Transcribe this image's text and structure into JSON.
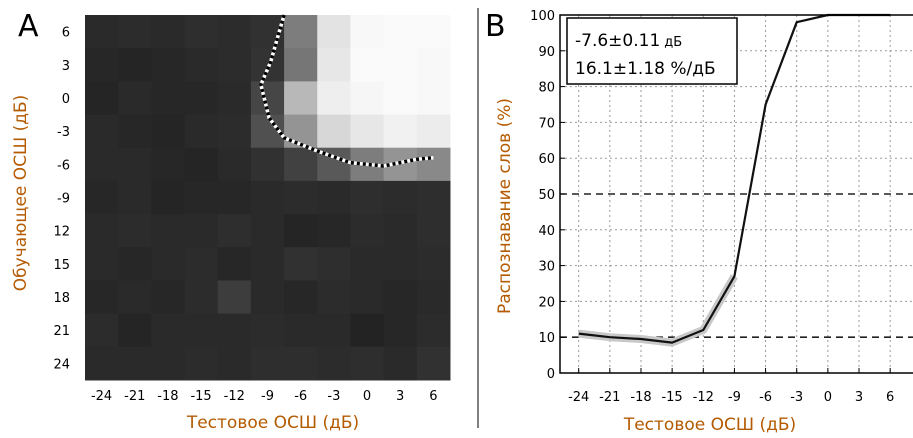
{
  "chart_data": [
    {
      "panel": "A",
      "type": "heatmap",
      "xlabel": "Тестовое ОСШ (дБ)",
      "ylabel": "Обучающее ОСШ (дБ)",
      "x_categories": [
        "-24",
        "-21",
        "-18",
        "-15",
        "-12",
        "-9",
        "-6",
        "-3",
        "0",
        "3",
        "6"
      ],
      "x_tick_labels": [
        "-24",
        "-21",
        "-18",
        "-15",
        "-12",
        "-9",
        "-6",
        "-3",
        "0",
        "3",
        "6"
      ],
      "y_categories": [
        "6",
        "3",
        "0",
        "-3",
        "-6",
        "-9",
        "12",
        "15",
        "18",
        "21",
        "24"
      ],
      "color_scale": "grayscale, black = low, white = high",
      "values": [
        [
          0.1,
          0.11,
          0.1,
          0.12,
          0.11,
          0.13,
          0.45,
          0.88,
          0.97,
          0.98,
          0.98
        ],
        [
          0.09,
          0.08,
          0.09,
          0.1,
          0.11,
          0.14,
          0.42,
          0.9,
          0.98,
          0.98,
          0.97
        ],
        [
          0.08,
          0.1,
          0.09,
          0.09,
          0.1,
          0.22,
          0.7,
          0.93,
          0.96,
          0.98,
          0.97
        ],
        [
          0.1,
          0.09,
          0.08,
          0.1,
          0.11,
          0.26,
          0.55,
          0.83,
          0.9,
          0.94,
          0.92
        ],
        [
          0.1,
          0.1,
          0.09,
          0.08,
          0.1,
          0.13,
          0.2,
          0.3,
          0.45,
          0.55,
          0.5
        ],
        [
          0.09,
          0.1,
          0.08,
          0.09,
          0.09,
          0.1,
          0.11,
          0.1,
          0.12,
          0.11,
          0.12
        ],
        [
          0.1,
          0.11,
          0.1,
          0.1,
          0.12,
          0.1,
          0.08,
          0.09,
          0.11,
          0.1,
          0.12
        ],
        [
          0.1,
          0.09,
          0.1,
          0.11,
          0.09,
          0.1,
          0.13,
          0.12,
          0.1,
          0.1,
          0.11
        ],
        [
          0.09,
          0.1,
          0.09,
          0.11,
          0.18,
          0.1,
          0.09,
          0.11,
          0.1,
          0.09,
          0.1
        ],
        [
          0.11,
          0.08,
          0.1,
          0.1,
          0.1,
          0.11,
          0.1,
          0.1,
          0.07,
          0.09,
          0.11
        ],
        [
          0.1,
          0.1,
          0.1,
          0.11,
          0.1,
          0.12,
          0.12,
          0.11,
          0.12,
          0.1,
          0.13
        ]
      ],
      "contour": "white/black dotted boundary around high region"
    },
    {
      "panel": "B",
      "type": "line",
      "xlabel": "Тестовое ОСШ (дБ)",
      "ylabel": "Распознавание слов (%)",
      "x": [
        -24,
        -21,
        -18,
        -15,
        -12,
        -9,
        -6,
        -3,
        0,
        3,
        6
      ],
      "x_tick_labels": [
        "-24",
        "-21",
        "-18",
        "-15",
        "-12",
        "-9",
        "-6",
        "-3",
        "0",
        "3",
        "6"
      ],
      "y_tick_labels": [
        "0",
        "10",
        "20",
        "30",
        "40",
        "50",
        "60",
        "70",
        "80",
        "90",
        "100"
      ],
      "ylim": [
        0,
        100
      ],
      "grid": true,
      "reference_lines": [
        10,
        50
      ],
      "series": [
        {
          "values": [
            11,
            10,
            9.5,
            8.5,
            12,
            27,
            75,
            98,
            100,
            100,
            100
          ]
        }
      ],
      "annotation": {
        "line1": "-7.6±0.11",
        "unit1": "дБ",
        "line2": "16.1±1.18 %/",
        "unit2": "дБ"
      }
    }
  ],
  "panel_letters": {
    "a": "A",
    "b": "B"
  },
  "colors": {
    "axis_title": "#b45a00",
    "line": "#111111",
    "band": "#c8c8c8"
  }
}
